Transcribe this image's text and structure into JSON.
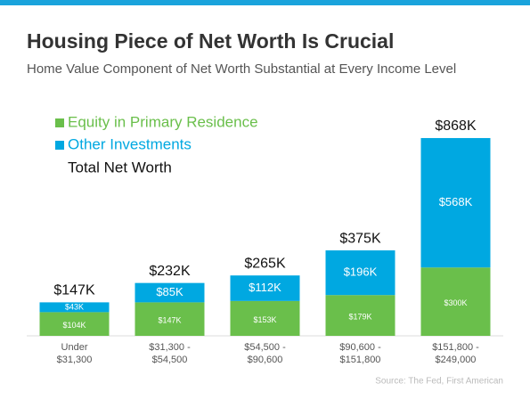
{
  "chart_data": {
    "type": "stacked-bar",
    "title": "Housing Piece of Net Worth Is Crucial",
    "subtitle": "Home Value Component of Net Worth Substantial at Every Income Level",
    "categories": [
      [
        "Under",
        "$31,300"
      ],
      [
        "$31,300 -",
        "$54,500"
      ],
      [
        "$54,500 -",
        "$90,600"
      ],
      [
        "$90,600 -",
        "$151,800"
      ],
      [
        "$151,800 -",
        "$249,000"
      ]
    ],
    "series": [
      {
        "name": "Equity in Primary Residence",
        "color": "#6abf4b",
        "values": [
          104,
          147,
          153,
          179,
          300
        ],
        "value_labels": [
          "$104K",
          "$147K",
          "$153K",
          "$179K",
          "$300K"
        ]
      },
      {
        "name": "Other Investments",
        "color": "#00a8e1",
        "values": [
          43,
          85,
          112,
          196,
          568
        ],
        "value_labels": [
          "$43K",
          "$85K",
          "$112K",
          "$196K",
          "$568K"
        ]
      }
    ],
    "totals": {
      "name": "Total Net Worth",
      "color": "#111111",
      "values": [
        147,
        232,
        265,
        375,
        868
      ],
      "value_labels": [
        "$147K",
        "$232K",
        "$265K",
        "$375K",
        "$868K"
      ]
    },
    "source": "Source: The Fed, First American"
  }
}
